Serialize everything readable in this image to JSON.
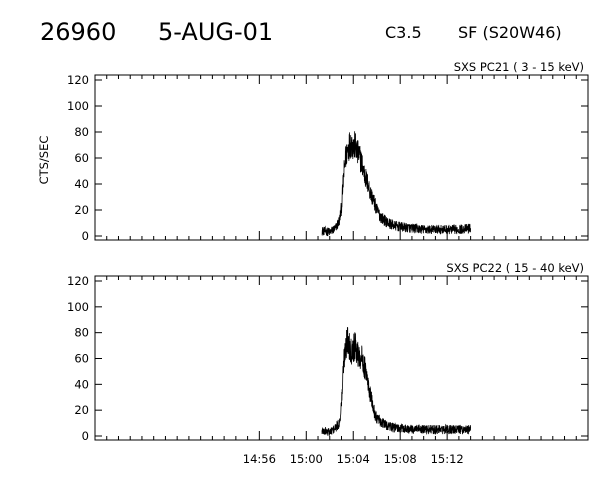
{
  "header": {
    "event_id": "26960",
    "date": "5-AUG-01",
    "goes_class": "C3.5",
    "location": "SF (S20W46)"
  },
  "chart_data": [
    {
      "type": "line",
      "title": "SXS PC21  (  3 - 15 keV)",
      "ylabel": "CTS/SEC",
      "xlabel": "",
      "ylim": [
        0,
        120
      ],
      "yticks": [
        0,
        20,
        40,
        60,
        80,
        100,
        120
      ],
      "xlim_minutes": [
        -22,
        20
      ],
      "xticks": [
        "14:56",
        "15:00",
        "15:04",
        "15:08",
        "15:12"
      ],
      "xtick_minutes": [
        -8,
        -4,
        0,
        4,
        8
      ],
      "show_xtick_labels": false,
      "grid": false,
      "series": [
        {
          "name": "",
          "x": [
            "15:01:20",
            "15:02:00",
            "15:02:30",
            "15:02:50",
            "15:03:00",
            "15:03:10",
            "15:03:20",
            "15:03:30",
            "15:03:40",
            "15:03:50",
            "15:04:00",
            "15:04:10",
            "15:04:20",
            "15:04:30",
            "15:04:45",
            "15:05:00",
            "15:05:15",
            "15:05:30",
            "15:05:45",
            "15:06:00",
            "15:06:20",
            "15:06:40",
            "15:07:00",
            "15:07:30",
            "15:08:00",
            "15:09:00",
            "15:10:00",
            "15:11:00",
            "15:12:00",
            "15:13:00",
            "15:14:00"
          ],
          "values": [
            4,
            3,
            6,
            12,
            22,
            45,
            60,
            66,
            70,
            72,
            68,
            70,
            64,
            62,
            55,
            46,
            40,
            32,
            27,
            20,
            15,
            12,
            10,
            8,
            7,
            6,
            5,
            5,
            5,
            5,
            6
          ]
        }
      ]
    },
    {
      "type": "line",
      "title": "SXS PC22  ( 15 - 40 keV)",
      "ylabel": "",
      "xlabel": "",
      "ylim": [
        0,
        120
      ],
      "yticks": [
        0,
        20,
        40,
        60,
        80,
        100,
        120
      ],
      "xlim_minutes": [
        -22,
        20
      ],
      "xticks": [
        "14:56",
        "15:00",
        "15:04",
        "15:08",
        "15:12"
      ],
      "xtick_minutes": [
        -8,
        -4,
        0,
        4,
        8
      ],
      "show_xtick_labels": true,
      "grid": false,
      "series": [
        {
          "name": "",
          "x": [
            "15:01:20",
            "15:02:00",
            "15:02:30",
            "15:02:50",
            "15:03:00",
            "15:03:10",
            "15:03:20",
            "15:03:30",
            "15:03:40",
            "15:03:50",
            "15:04:00",
            "15:04:10",
            "15:04:20",
            "15:04:30",
            "15:04:45",
            "15:05:00",
            "15:05:15",
            "15:05:30",
            "15:05:45",
            "15:06:00",
            "15:06:20",
            "15:06:40",
            "15:07:00",
            "15:07:30",
            "15:08:00",
            "15:09:00",
            "15:10:00",
            "15:11:00",
            "15:12:00",
            "15:13:00",
            "15:14:00"
          ],
          "values": [
            4,
            3,
            6,
            10,
            25,
            55,
            70,
            74,
            70,
            66,
            68,
            70,
            64,
            62,
            60,
            52,
            40,
            30,
            20,
            14,
            11,
            9,
            8,
            6,
            6,
            5,
            5,
            5,
            5,
            5,
            5
          ]
        }
      ]
    }
  ]
}
